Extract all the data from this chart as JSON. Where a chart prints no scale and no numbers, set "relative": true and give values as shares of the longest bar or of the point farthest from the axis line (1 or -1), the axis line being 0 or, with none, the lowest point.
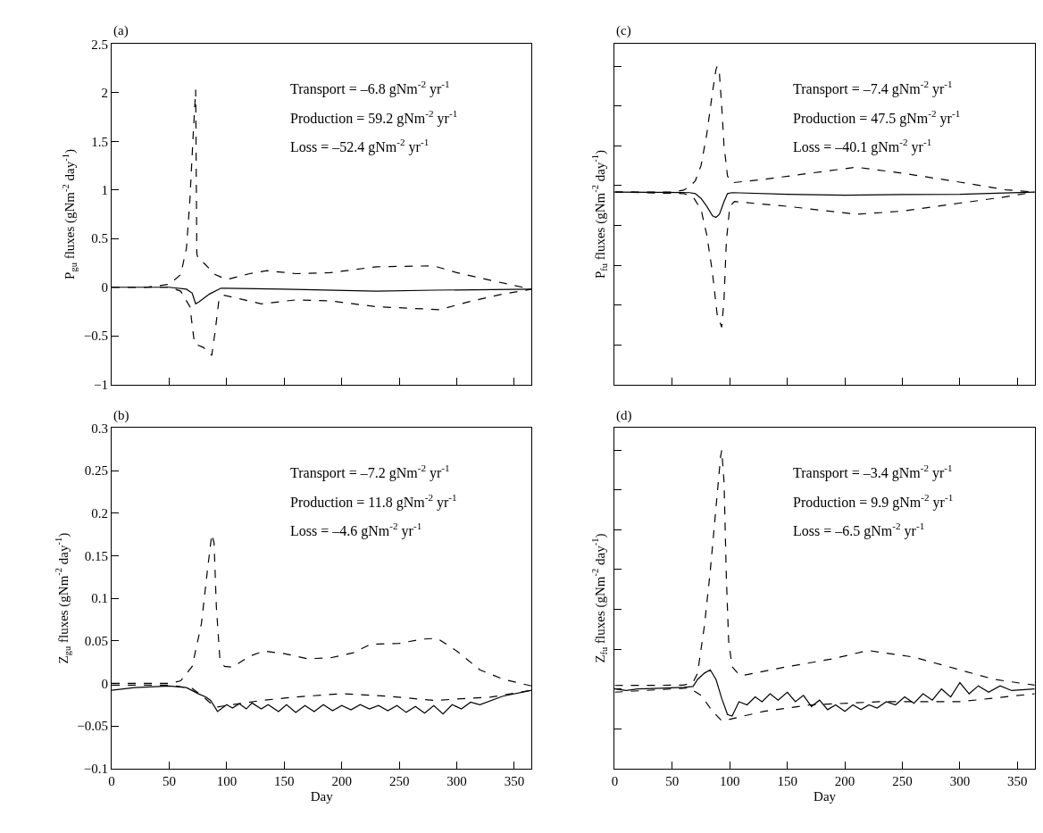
{
  "chart_data": [
    {
      "type": "line",
      "title": "(a)",
      "ylabel": "P$_{gu}$ fluxes (gNm$^{-2}$ day$^{-1}$)",
      "xlim": [
        0,
        365
      ],
      "xticks": [
        0,
        50,
        100,
        150,
        200,
        250,
        300,
        350
      ],
      "ylim": [
        -1,
        2.5
      ],
      "yticks": [
        -1,
        -0.5,
        0,
        0.5,
        1,
        1.5,
        2,
        2.5
      ],
      "tick_labels": "y",
      "annotations": [
        "Transport = –6.8 gNm$^{-2}$ yr$^{-1}$",
        "Production = 59.2 gNm$^{-2}$ yr$^{-1}$",
        "Loss = –52.4 gNm$^{-2}$ yr$^{-1}$"
      ],
      "series": [
        {
          "color": "#000000",
          "line_style": "dashed",
          "x": [
            0,
            30,
            50,
            60,
            65,
            68,
            71,
            73,
            74,
            75,
            80,
            90,
            100,
            120,
            135,
            160,
            190,
            230,
            280,
            300,
            330,
            365
          ],
          "values": [
            0,
            0,
            0.03,
            0.13,
            0.4,
            0.9,
            1.6,
            2.03,
            0.35,
            0.3,
            0.25,
            0.13,
            0.08,
            0.14,
            0.17,
            0.14,
            0.15,
            0.21,
            0.22,
            0.15,
            0.07,
            -0.02
          ]
        },
        {
          "color": "#000000",
          "line_style": "solid",
          "x": [
            0,
            50,
            65,
            70,
            73,
            76,
            85,
            95,
            150,
            230,
            280,
            365
          ],
          "values": [
            0,
            0,
            -0.02,
            -0.06,
            -0.17,
            -0.15,
            -0.07,
            -0.01,
            -0.02,
            -0.04,
            -0.03,
            -0.02
          ]
        },
        {
          "color": "#000000",
          "line_style": "dashed",
          "x": [
            0,
            50,
            60,
            68,
            72,
            80,
            87,
            90,
            93,
            97,
            130,
            160,
            190,
            230,
            285,
            310,
            340,
            365
          ],
          "values": [
            0,
            0,
            -0.04,
            -0.2,
            -0.58,
            -0.62,
            -0.7,
            -0.45,
            -0.15,
            -0.08,
            -0.17,
            -0.13,
            -0.14,
            -0.2,
            -0.23,
            -0.15,
            -0.07,
            -0.02
          ]
        }
      ]
    },
    {
      "type": "line",
      "title": "(c)",
      "ylabel": "P$_{fu}$ fluxes (gNm$^{-2}$ day$^{-1}$)",
      "xlim": [
        0,
        365
      ],
      "xticks": [
        0,
        50,
        100,
        150,
        200,
        250,
        300,
        350
      ],
      "relative": true,
      "tick_labels": false,
      "annotations": [
        "Transport = –7.4 gNm$^{-2}$ yr$^{-1}$",
        "Production = 47.5 gNm$^{-2}$ yr$^{-1}$",
        "Loss = –40.1 gNm$^{-2}$ yr$^{-1}$"
      ],
      "series": [
        {
          "color": "#000000",
          "line_style": "dashed",
          "x": [
            0,
            50,
            60,
            65,
            70,
            75,
            80,
            85,
            88,
            89,
            91,
            93,
            95,
            98,
            102,
            130,
            170,
            210,
            250,
            300,
            340,
            365
          ],
          "values": [
            0.605,
            0.605,
            0.611,
            0.622,
            0.64,
            0.688,
            0.787,
            0.92,
            0.99,
            1.0,
            0.976,
            0.872,
            0.749,
            0.655,
            0.634,
            0.645,
            0.664,
            0.683,
            0.664,
            0.636,
            0.612,
            0.605
          ]
        },
        {
          "color": "#000000",
          "line_style": "solid",
          "x": [
            0,
            65,
            70,
            75,
            80,
            85,
            88,
            91,
            95,
            98,
            102,
            150,
            200,
            250,
            300,
            365
          ],
          "values": [
            0.605,
            0.603,
            0.6,
            0.585,
            0.56,
            0.53,
            0.525,
            0.535,
            0.575,
            0.6,
            0.603,
            0.598,
            0.595,
            0.597,
            0.598,
            0.605
          ]
        },
        {
          "color": "#000000",
          "line_style": "dashed",
          "x": [
            0,
            60,
            68,
            75,
            80,
            85,
            89,
            93,
            95,
            97,
            100,
            104,
            150,
            210,
            250,
            300,
            340,
            365
          ],
          "values": [
            0.605,
            0.6,
            0.59,
            0.55,
            0.47,
            0.35,
            0.22,
            0.18,
            0.27,
            0.45,
            0.56,
            0.575,
            0.56,
            0.535,
            0.545,
            0.57,
            0.59,
            0.605
          ]
        }
      ]
    },
    {
      "type": "line",
      "title": "(b)",
      "xlabel": "Day",
      "ylabel": "Z$_{gu}$ fluxes (gNm$^{-2}$ day$^{-1}$)",
      "xlim": [
        0,
        365
      ],
      "xticks": [
        0,
        50,
        100,
        150,
        200,
        250,
        300,
        350
      ],
      "ylim": [
        -0.1,
        0.3
      ],
      "yticks": [
        -0.1,
        -0.05,
        0,
        0.05,
        0.1,
        0.15,
        0.2,
        0.25,
        0.3
      ],
      "annotations": [
        "Transport = –7.2 gNm$^{-2}$ yr$^{-1}$",
        "Production = 11.8 gNm$^{-2}$ yr$^{-1}$",
        "Loss = –4.6 gNm$^{-2}$ yr$^{-1}$"
      ],
      "series": [
        {
          "color": "#000000",
          "line_style": "dashed",
          "x": [
            0,
            50,
            60,
            70,
            78,
            83,
            87,
            89,
            91,
            94,
            98,
            105,
            120,
            132,
            150,
            170,
            190,
            210,
            225,
            250,
            270,
            283,
            300,
            320,
            340,
            365
          ],
          "values": [
            0,
            0,
            0.003,
            0.02,
            0.07,
            0.13,
            0.175,
            0.165,
            0.09,
            0.03,
            0.02,
            0.019,
            0.032,
            0.038,
            0.035,
            0.029,
            0.03,
            0.036,
            0.046,
            0.047,
            0.052,
            0.053,
            0.038,
            0.016,
            0.005,
            -0.003
          ]
        },
        {
          "color": "#000000",
          "line_style": "dashed",
          "x": [
            0,
            50,
            70,
            80,
            90,
            100,
            130,
            160,
            200,
            240,
            280,
            330,
            365
          ],
          "values": [
            -0.002,
            -0.002,
            -0.006,
            -0.016,
            -0.028,
            -0.026,
            -0.02,
            -0.016,
            -0.012,
            -0.015,
            -0.02,
            -0.016,
            -0.008
          ]
        },
        {
          "color": "#000000",
          "line_style": "solid",
          "x": [
            0,
            20,
            50,
            65,
            75,
            82,
            86,
            92,
            100,
            105,
            111,
            117,
            122,
            130,
            136,
            145,
            152,
            160,
            168,
            176,
            184,
            192,
            200,
            208,
            216,
            224,
            232,
            240,
            248,
            256,
            264,
            272,
            280,
            288,
            296,
            304,
            312,
            320,
            340,
            365
          ],
          "values": [
            -0.008,
            -0.005,
            -0.003,
            -0.005,
            -0.012,
            -0.016,
            -0.02,
            -0.033,
            -0.025,
            -0.029,
            -0.024,
            -0.03,
            -0.023,
            -0.03,
            -0.025,
            -0.033,
            -0.025,
            -0.034,
            -0.026,
            -0.033,
            -0.025,
            -0.032,
            -0.026,
            -0.031,
            -0.025,
            -0.03,
            -0.026,
            -0.032,
            -0.026,
            -0.034,
            -0.027,
            -0.035,
            -0.026,
            -0.036,
            -0.025,
            -0.03,
            -0.022,
            -0.025,
            -0.015,
            -0.008
          ]
        }
      ]
    },
    {
      "type": "line",
      "title": "(d)",
      "xlabel": "Day",
      "ylabel": "Z$_{fu}$ fluxes (gNm$^{-2}$ day$^{-1}$)",
      "xlim": [
        0,
        365
      ],
      "xticks": [
        0,
        50,
        100,
        150,
        200,
        250,
        300,
        350
      ],
      "relative": true,
      "tick_labels": "x",
      "annotations": [
        "Transport = –3.4 gNm$^{-2}$ yr$^{-1}$",
        "Production = 9.9 gNm$^{-2}$ yr$^{-1}$",
        "Loss = –6.5 gNm$^{-2}$ yr$^{-1}$"
      ],
      "series": [
        {
          "color": "#000000",
          "line_style": "dashed",
          "x": [
            0,
            60,
            68,
            72,
            78,
            83,
            88,
            92,
            93,
            95,
            97,
            99,
            102,
            108,
            112,
            150,
            190,
            220,
            260,
            300,
            330,
            365
          ],
          "values": [
            0.261,
            0.262,
            0.27,
            0.3,
            0.45,
            0.62,
            0.82,
            0.98,
            1.0,
            0.9,
            0.6,
            0.4,
            0.32,
            0.295,
            0.293,
            0.32,
            0.345,
            0.371,
            0.35,
            0.31,
            0.28,
            0.262
          ]
        },
        {
          "color": "#000000",
          "line_style": "solid",
          "x": [
            0,
            10,
            20,
            40,
            60,
            68,
            72,
            78,
            83,
            88,
            93,
            98,
            102,
            108,
            115,
            122,
            128,
            135,
            142,
            150,
            157,
            164,
            171,
            178,
            185,
            192,
            200,
            207,
            214,
            221,
            228,
            236,
            244,
            252,
            260,
            268,
            276,
            284,
            292,
            300,
            308,
            316,
            325,
            335,
            345,
            365
          ],
          "values": [
            0.25,
            0.245,
            0.25,
            0.252,
            0.255,
            0.258,
            0.28,
            0.3,
            0.31,
            0.28,
            0.22,
            0.17,
            0.165,
            0.21,
            0.2,
            0.225,
            0.21,
            0.235,
            0.215,
            0.24,
            0.21,
            0.23,
            0.195,
            0.215,
            0.185,
            0.2,
            0.18,
            0.2,
            0.185,
            0.2,
            0.19,
            0.21,
            0.2,
            0.225,
            0.205,
            0.235,
            0.215,
            0.25,
            0.225,
            0.27,
            0.235,
            0.26,
            0.24,
            0.26,
            0.245,
            0.25
          ]
        },
        {
          "color": "#000000",
          "line_style": "dashed",
          "x": [
            0,
            50,
            65,
            75,
            85,
            93,
            100,
            130,
            170,
            230,
            300,
            365
          ],
          "values": [
            0.24,
            0.25,
            0.253,
            0.23,
            0.18,
            0.15,
            0.155,
            0.18,
            0.2,
            0.21,
            0.21,
            0.235
          ]
        }
      ]
    }
  ]
}
